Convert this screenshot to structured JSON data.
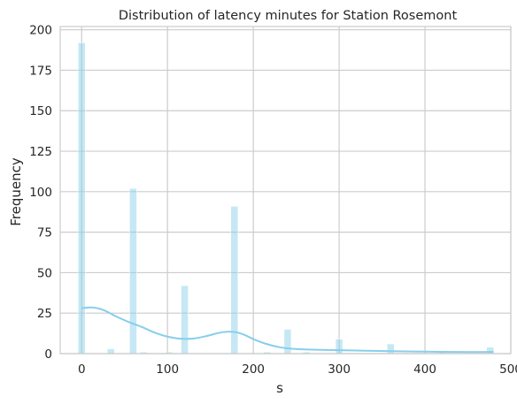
{
  "chart_data": {
    "type": "bar",
    "title": "Distribution of latency minutes for Station Rosemont",
    "xlabel": "s",
    "ylabel": "Frequency",
    "xlim": [
      -25,
      500
    ],
    "ylim": [
      0,
      202
    ],
    "xticks": [
      0,
      100,
      200,
      300,
      400,
      500
    ],
    "yticks": [
      0,
      25,
      50,
      75,
      100,
      125,
      150,
      175,
      200
    ],
    "grid": true,
    "bin_width": 8.4,
    "bars": [
      {
        "x": 0,
        "value": 192
      },
      {
        "x": 34,
        "value": 3
      },
      {
        "x": 60,
        "value": 102
      },
      {
        "x": 72,
        "value": 1
      },
      {
        "x": 102,
        "value": 1
      },
      {
        "x": 120,
        "value": 42
      },
      {
        "x": 178,
        "value": 91
      },
      {
        "x": 216,
        "value": 1
      },
      {
        "x": 240,
        "value": 15
      },
      {
        "x": 262,
        "value": 1
      },
      {
        "x": 300,
        "value": 9
      },
      {
        "x": 360,
        "value": 6
      },
      {
        "x": 420,
        "value": 1
      },
      {
        "x": 476,
        "value": 4
      }
    ],
    "kde": {
      "x": [
        0,
        12,
        25,
        40,
        55,
        70,
        85,
        100,
        115,
        130,
        145,
        160,
        170,
        180,
        190,
        200,
        215,
        230,
        245,
        260,
        280,
        300,
        330,
        360,
        400,
        440,
        480
      ],
      "y": [
        28,
        28.5,
        27,
        23,
        19.5,
        16.5,
        13,
        10.5,
        9.2,
        9.3,
        10.8,
        12.8,
        13.5,
        13.2,
        11.5,
        9,
        6,
        4,
        3,
        2.6,
        2.3,
        2.1,
        1.8,
        1.5,
        1.2,
        1,
        1
      ]
    },
    "colors": {
      "bar_fill": "#87ceeb",
      "kde_line": "#87ceeb",
      "grid": "#cccccc",
      "frame": "#cccccc",
      "text": "#262626"
    }
  }
}
